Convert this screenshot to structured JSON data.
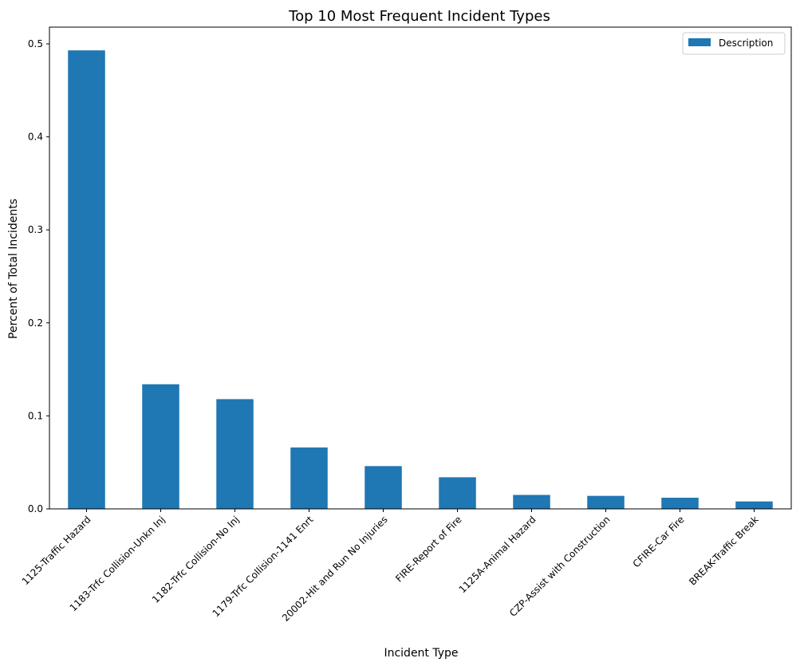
{
  "chart_data": {
    "type": "bar",
    "title": "Top 10 Most Frequent Incident Types",
    "xlabel": "Incident Type",
    "ylabel": "Percent of Total Incidents",
    "categories": [
      "1125-Traffic Hazard",
      "1183-Trfc Collision-Unkn Inj",
      "1182-Trfc Collision-No Inj",
      "1179-Trfc Collision-1141 Enrt",
      "20002-Hit and Run No Injuries",
      "FIRE-Report of Fire",
      "1125A-Animal Hazard",
      "CZP-Assist with Construction",
      "CFIRE-Car Fire",
      "BREAK-Traffic Break"
    ],
    "series": [
      {
        "name": "Description",
        "values": [
          0.493,
          0.134,
          0.118,
          0.066,
          0.046,
          0.034,
          0.015,
          0.014,
          0.012,
          0.008
        ]
      }
    ],
    "yticks": [
      "0.0",
      "0.1",
      "0.2",
      "0.3",
      "0.4",
      "0.5"
    ],
    "ylim": [
      0,
      0.518
    ],
    "legend_position": "top-right",
    "grid": false,
    "colors": {
      "bar": "#1f77b4",
      "axis": "#000000",
      "background": "#ffffff"
    }
  }
}
